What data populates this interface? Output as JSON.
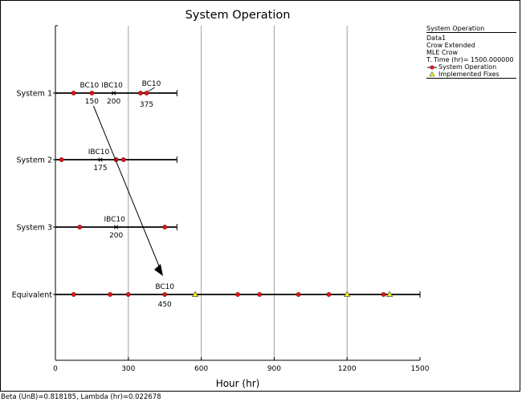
{
  "chart_data": {
    "type": "scatter",
    "title": "System Operation",
    "xlabel": "Hour (hr)",
    "ylabel": "",
    "xlim": [
      0,
      1500
    ],
    "xticks": [
      0,
      300,
      600,
      900,
      1200,
      1500
    ],
    "grid": "vertical",
    "legend_position": "right",
    "systems": [
      {
        "name": "System 1",
        "end": 500,
        "failures": [
          75,
          150,
          350,
          375
        ],
        "marks": [
          {
            "label": "IBC10",
            "x": 240,
            "value": "200"
          }
        ],
        "annotations": [
          {
            "label": "BC10",
            "x": 150,
            "value": "150"
          },
          {
            "label": "BC10",
            "x": 375,
            "value": "375"
          }
        ]
      },
      {
        "name": "System 2",
        "end": 500,
        "failures": [
          25,
          250,
          280
        ],
        "marks": [
          {
            "label": "IBC10",
            "x": 185,
            "value": "175"
          }
        ],
        "annotations": []
      },
      {
        "name": "System 3",
        "end": 500,
        "failures": [
          100,
          450
        ],
        "marks": [
          {
            "label": "IBC10",
            "x": 250,
            "value": "200"
          }
        ],
        "annotations": []
      },
      {
        "name": "Equivalent",
        "end": 1500,
        "failures": [
          75,
          225,
          300,
          450,
          750,
          840,
          1000,
          1125,
          1350
        ],
        "fixes": [
          575,
          1200,
          1375
        ],
        "marks": [],
        "annotations": [
          {
            "label": "BC10",
            "x": 450,
            "value": "450"
          }
        ]
      }
    ],
    "arrow": {
      "from_system": "System 1",
      "from_x": 150,
      "to_system": "Equivalent",
      "to_x": 450
    }
  },
  "legend": {
    "title": "System Operation",
    "lines": [
      "Data1",
      "Crow Extended",
      "MLE Crow",
      "T. Time (hr)= 1500.000000"
    ],
    "items": [
      {
        "label": "System Operation",
        "marker": "red-dot-line"
      },
      {
        "label": "Implemented Fixes",
        "marker": "yellow-triangle"
      }
    ]
  },
  "colors": {
    "failure_dot": "#e8141c",
    "fix_triangle": "#f2f20a",
    "grid": "#a0a0a0",
    "axis": "#000000"
  },
  "status_bar": "Beta (UnB)=0.818185, Lambda (hr)=0.022678"
}
